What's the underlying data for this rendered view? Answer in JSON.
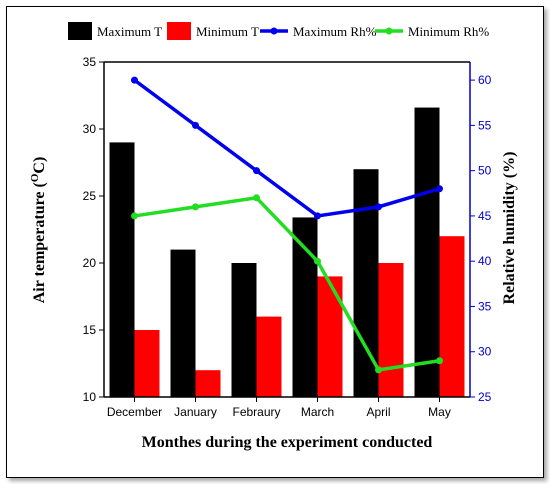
{
  "chart_data": {
    "type": "bar",
    "categories": [
      "December",
      "January",
      "Febraury",
      "March",
      "April",
      "May"
    ],
    "series": [
      {
        "name": "Maximum T",
        "kind": "bar",
        "axis": "left",
        "color": "#000000",
        "values": [
          29,
          21,
          20,
          23.4,
          27,
          31.6
        ]
      },
      {
        "name": "Minimum T",
        "kind": "bar",
        "axis": "left",
        "color": "#ff0000",
        "values": [
          15,
          12,
          16,
          19,
          20,
          22
        ]
      },
      {
        "name": "Maximum Rh%",
        "kind": "line",
        "axis": "right",
        "color": "#0000ee",
        "values": [
          60,
          55,
          50,
          45,
          46,
          48
        ]
      },
      {
        "name": "Minimum Rh%",
        "kind": "line",
        "axis": "right",
        "color": "#22dd22",
        "values": [
          45,
          46,
          47,
          40,
          28,
          29
        ]
      }
    ],
    "xlabel": "Monthes during the experiment conducted",
    "ylabel": "Air temperature (OC)",
    "ylabel_main": "Air temperature (",
    "ylabel_sup": "O",
    "ylabel_unit": "C)",
    "y2label": "Relative humidity (%)",
    "ylim": [
      10,
      35
    ],
    "y2lim": [
      25,
      62
    ],
    "yticks": [
      10,
      15,
      20,
      25,
      30,
      35
    ],
    "y2ticks": [
      25,
      30,
      35,
      40,
      45,
      50,
      55,
      60
    ],
    "legend_position": "top",
    "grid": false
  }
}
